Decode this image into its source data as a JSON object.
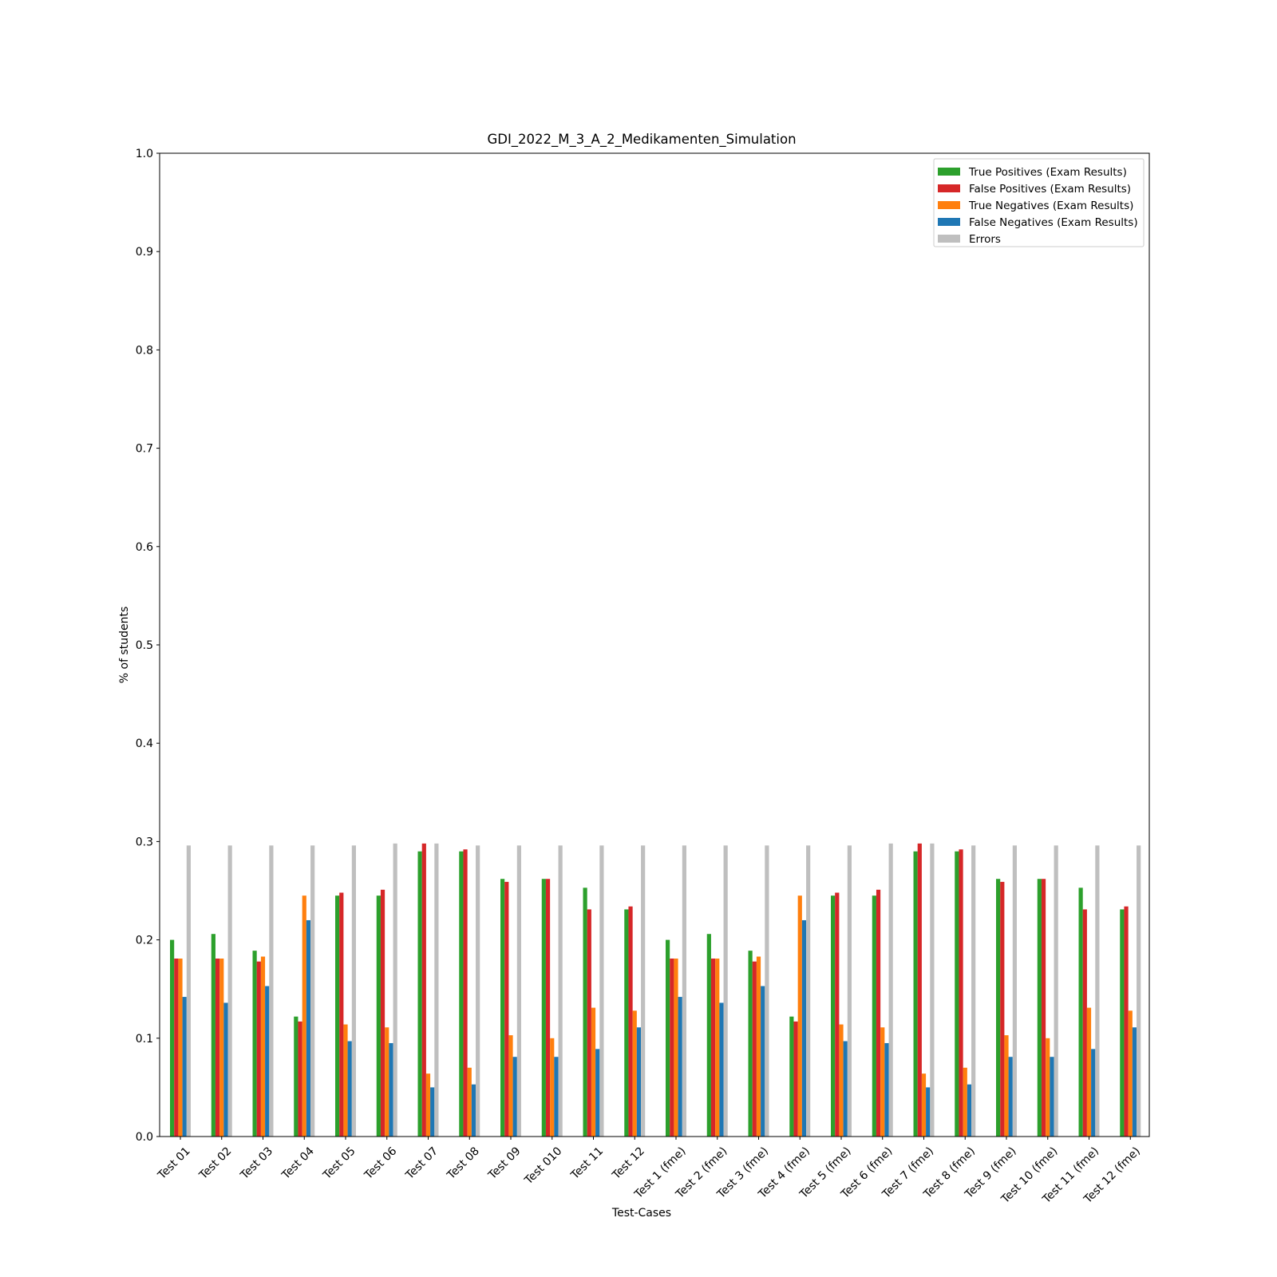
{
  "chart_data": {
    "type": "bar",
    "title": "GDI_2022_M_3_A_2_Medikamenten_Simulation",
    "xlabel": "Test-Cases",
    "ylabel": "% of students",
    "ylim": [
      0,
      1.0
    ],
    "yticks": [
      0.0,
      0.1,
      0.2,
      0.3,
      0.4,
      0.5,
      0.6,
      0.7,
      0.8,
      0.9,
      1.0
    ],
    "ytick_labels": [
      "0.0",
      "0.1",
      "0.2",
      "0.3",
      "0.4",
      "0.5",
      "0.6",
      "0.7",
      "0.8",
      "0.9",
      "1.0"
    ],
    "grid": false,
    "legend_position": "top-right",
    "categories": [
      "Test 01",
      "Test 02",
      "Test 03",
      "Test 04",
      "Test 05",
      "Test 06",
      "Test 07",
      "Test 08",
      "Test 09",
      "Test 010",
      "Test 11",
      "Test 12",
      "Test 1 (fme)",
      "Test 2 (fme)",
      "Test 3 (fme)",
      "Test 4 (fme)",
      "Test 5 (fme)",
      "Test 6 (fme)",
      "Test 7 (fme)",
      "Test 8 (fme)",
      "Test 9 (fme)",
      "Test 10 (fme)",
      "Test 11 (fme)",
      "Test 12 (fme)"
    ],
    "series": [
      {
        "name": "True Positives (Exam Results)",
        "color": "#2ca02c",
        "values": [
          0.2,
          0.206,
          0.189,
          0.122,
          0.245,
          0.245,
          0.29,
          0.29,
          0.262,
          0.262,
          0.253,
          0.231,
          0.2,
          0.206,
          0.189,
          0.122,
          0.245,
          0.245,
          0.29,
          0.29,
          0.262,
          0.262,
          0.253,
          0.231
        ]
      },
      {
        "name": "False Positives (Exam Results)",
        "color": "#d62728",
        "values": [
          0.181,
          0.181,
          0.178,
          0.117,
          0.248,
          0.251,
          0.298,
          0.292,
          0.259,
          0.262,
          0.231,
          0.234,
          0.181,
          0.181,
          0.178,
          0.117,
          0.248,
          0.251,
          0.298,
          0.292,
          0.259,
          0.262,
          0.231,
          0.234
        ]
      },
      {
        "name": "True Negatives (Exam Results)",
        "color": "#ff7f0e",
        "values": [
          0.181,
          0.181,
          0.183,
          0.245,
          0.114,
          0.111,
          0.064,
          0.07,
          0.103,
          0.1,
          0.131,
          0.128,
          0.181,
          0.181,
          0.183,
          0.245,
          0.114,
          0.111,
          0.064,
          0.07,
          0.103,
          0.1,
          0.131,
          0.128
        ]
      },
      {
        "name": "False Negatives (Exam Results)",
        "color": "#1f77b4",
        "values": [
          0.142,
          0.136,
          0.153,
          0.22,
          0.097,
          0.095,
          0.05,
          0.053,
          0.081,
          0.081,
          0.089,
          0.111,
          0.142,
          0.136,
          0.153,
          0.22,
          0.097,
          0.095,
          0.05,
          0.053,
          0.081,
          0.081,
          0.089,
          0.111
        ]
      },
      {
        "name": "Errors",
        "color": "#bfbfbf",
        "values": [
          0.296,
          0.296,
          0.296,
          0.296,
          0.296,
          0.298,
          0.298,
          0.296,
          0.296,
          0.296,
          0.296,
          0.296,
          0.296,
          0.296,
          0.296,
          0.296,
          0.296,
          0.298,
          0.298,
          0.296,
          0.296,
          0.296,
          0.296,
          0.296
        ]
      }
    ]
  }
}
